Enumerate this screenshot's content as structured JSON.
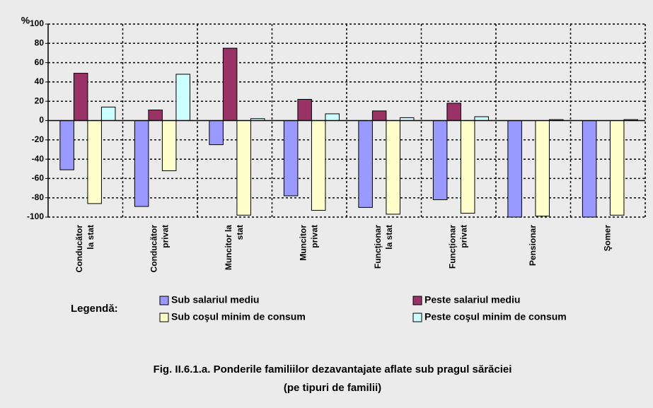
{
  "chart_data": {
    "type": "bar",
    "y_axis_label": "%",
    "categories": [
      [
        "Conducător",
        "la stat"
      ],
      [
        "Conducător",
        "privat"
      ],
      [
        "Muncitor la",
        "stat"
      ],
      [
        "Muncitor",
        "privat"
      ],
      [
        "Funcționar",
        "la stat"
      ],
      [
        "Funcționar",
        "privat"
      ],
      [
        "Pensionar"
      ],
      [
        "Şomer"
      ]
    ],
    "series": [
      {
        "name": "Sub salariul mediu",
        "color": "#9999ff",
        "values": [
          -51,
          -89,
          -25,
          -78,
          -90,
          -82,
          -100,
          -100
        ]
      },
      {
        "name": "Peste salariul mediu",
        "color": "#993366",
        "values": [
          49,
          11,
          75,
          22,
          10,
          18,
          0,
          0
        ]
      },
      {
        "name": "Sub coşul minim de consum",
        "color": "#ffffcc",
        "values": [
          -86,
          -52,
          -98,
          -93,
          -97,
          -96,
          -99,
          -98
        ]
      },
      {
        "name": "Peste coşul minim de consum",
        "color": "#ccffff",
        "values": [
          14,
          48,
          2,
          7,
          3,
          4,
          1,
          1
        ]
      }
    ],
    "ylim": [
      -100,
      100
    ],
    "yticks": [
      -100,
      -80,
      -60,
      -40,
      -20,
      0,
      20,
      40,
      60,
      80,
      100
    ],
    "grid": true,
    "legend_title": "Legendă:",
    "caption": [
      "Fig. II.6.1.a.  Ponderile familiilor dezavantajate aflate sub pragul sărăciei",
      "(pe tipuri de familii)"
    ]
  }
}
